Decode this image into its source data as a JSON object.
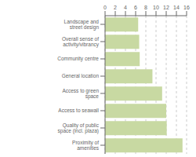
{
  "chart_data": {
    "type": "bar",
    "orientation": "horizontal",
    "categories": [
      "Landscape and street design",
      "Overall sense of activity/vibrancy",
      "Community centre",
      "General location",
      "Access to green space",
      "Access to seawall",
      "Quality of public space (incl. plaza)",
      "Proximity of amenities"
    ],
    "values": [
      6.5,
      6.7,
      6.8,
      9.3,
      11.2,
      12.0,
      12.1,
      15.2
    ],
    "color": "#c8d9a2",
    "xlim": [
      0,
      16
    ],
    "xticks": [
      0,
      2,
      4,
      6,
      8,
      10,
      12,
      14,
      16
    ],
    "grid": true
  }
}
